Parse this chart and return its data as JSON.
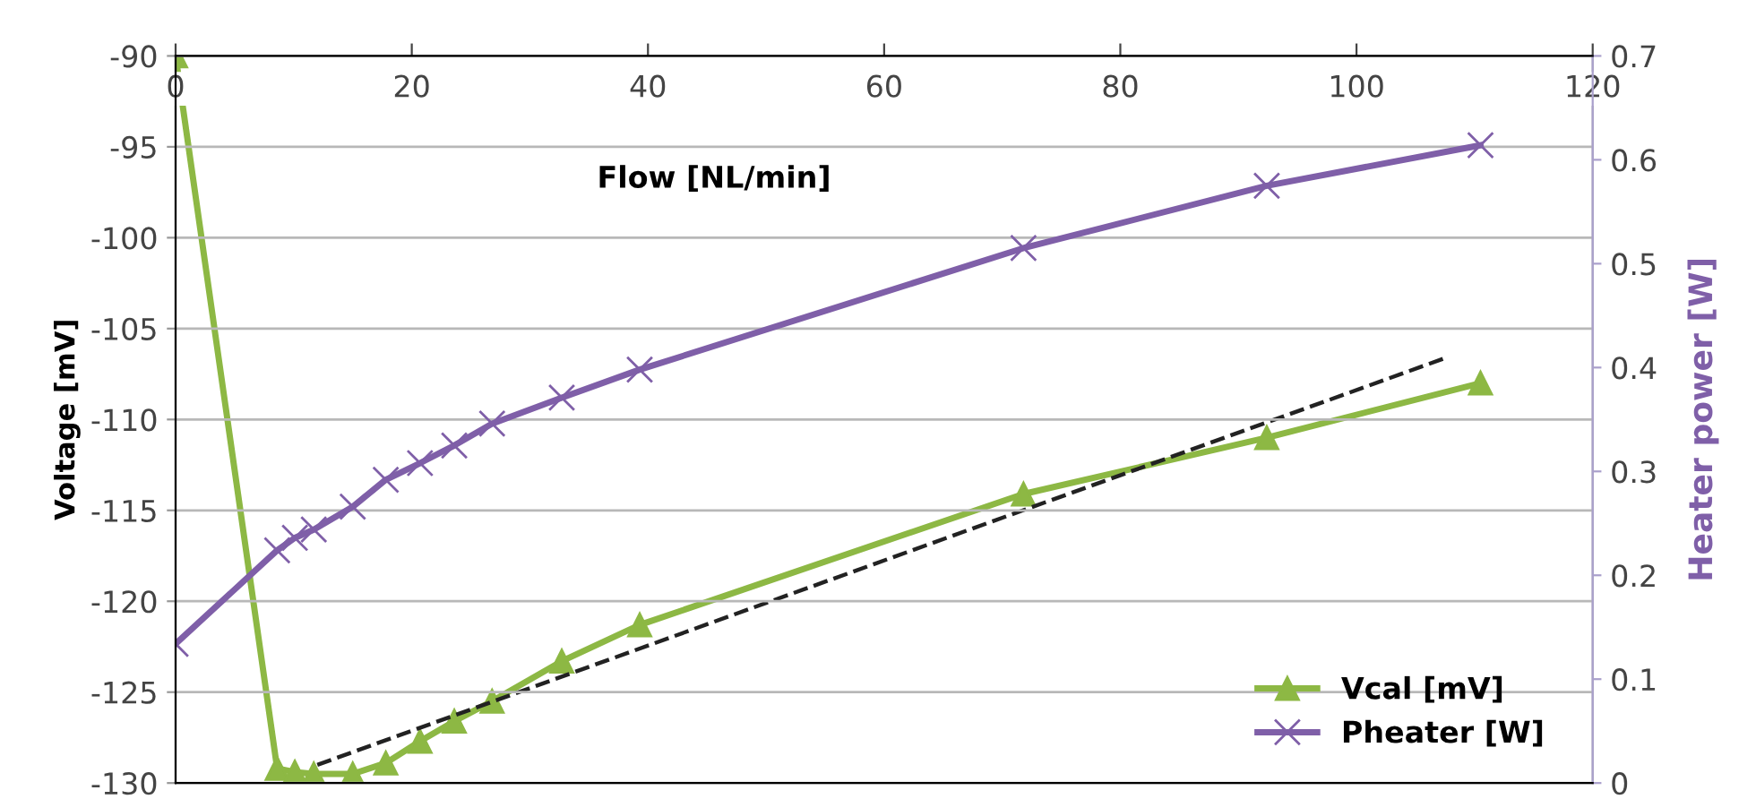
{
  "chart_data": {
    "type": "line",
    "x": [
      0,
      8.6,
      10.1,
      11.7,
      15.0,
      17.8,
      20.7,
      23.6,
      26.8,
      32.7,
      39.3,
      71.8,
      92.4,
      110.5
    ],
    "series": [
      {
        "name": "Vcal [mV]",
        "color": "#8db844",
        "marker": "triangle",
        "values": [
          -90,
          -129.2,
          -129.4,
          -129.5,
          -129.5,
          -128.9,
          -127.7,
          -126.6,
          -125.5,
          -123.3,
          -121.3,
          -114.1,
          -111.0,
          -108.0
        ]
      },
      {
        "name": "Pheater [W]",
        "color": "#7f5fa8",
        "marker": "cross",
        "axis": "y2",
        "values": [
          0.134,
          0.224,
          0.236,
          0.244,
          0.266,
          0.292,
          0.308,
          0.325,
          0.346,
          0.371,
          0.398,
          0.515,
          0.575,
          0.614
        ]
      },
      {
        "type": "line",
        "color": "#222222",
        "line_style": "dashed",
        "marker": "none",
        "x": [
          12.0,
          107.6
        ],
        "values": [
          -129.0,
          -106.6
        ]
      }
    ],
    "xlabel": "Flow [NL/min]",
    "ylabel": "Voltage [mV]",
    "y2label": "Heater power [W]",
    "xlim": [
      0,
      120
    ],
    "xticks": [
      0,
      20,
      40,
      60,
      80,
      100,
      120
    ],
    "ylim": [
      -130,
      -90
    ],
    "yticks": [
      -130,
      -125,
      -120,
      -115,
      -110,
      -105,
      -100,
      -95,
      -90
    ],
    "y2lim": [
      0,
      0.7
    ],
    "y2ticks": [
      0,
      0.1,
      0.2,
      0.3,
      0.4,
      0.5,
      0.6,
      0.7
    ],
    "grid": "y",
    "legend": "bottom right",
    "line_style": "solid"
  }
}
